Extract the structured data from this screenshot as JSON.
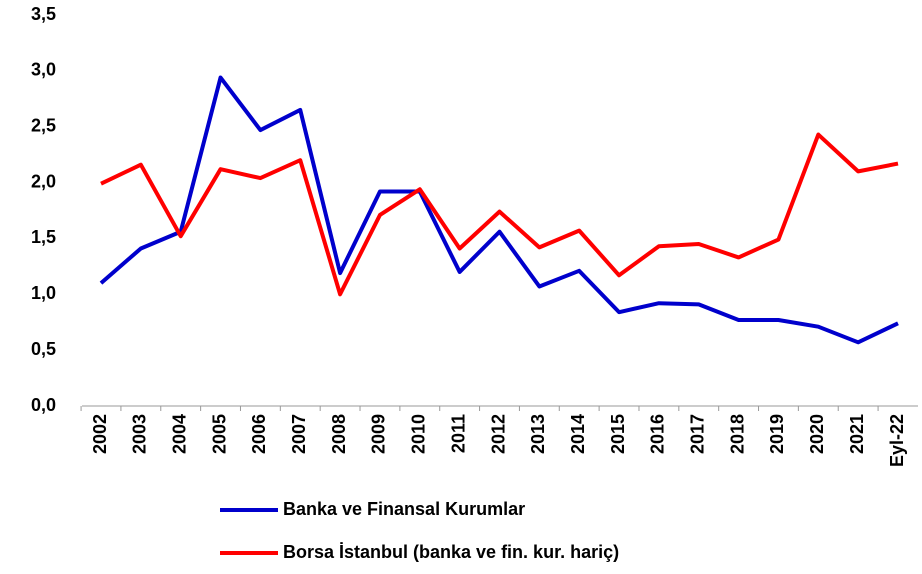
{
  "chart_data": {
    "type": "line",
    "categories": [
      "2002",
      "2003",
      "2004",
      "2005",
      "2006",
      "2007",
      "2008",
      "2009",
      "2010",
      "2011",
      "2012",
      "2013",
      "2014",
      "2015",
      "2016",
      "2017",
      "2018",
      "2019",
      "2020",
      "2021",
      "Eyl-22"
    ],
    "series": [
      {
        "name": "Banka ve Finansal Kurumlar",
        "color": "#0000cc",
        "values": [
          1.1,
          1.41,
          1.56,
          2.94,
          2.47,
          2.65,
          1.19,
          1.92,
          1.92,
          1.2,
          1.56,
          1.07,
          1.21,
          0.84,
          0.92,
          0.91,
          0.77,
          0.77,
          0.71,
          0.57,
          0.74
        ]
      },
      {
        "name": "Borsa İstanbul (banka ve fin. kur. hariç)",
        "color": "#ff0000",
        "values": [
          1.99,
          2.16,
          1.52,
          2.12,
          2.04,
          2.2,
          1.0,
          1.71,
          1.94,
          1.41,
          1.74,
          1.42,
          1.57,
          1.17,
          1.43,
          1.45,
          1.33,
          1.49,
          2.43,
          2.1,
          2.17
        ]
      }
    ],
    "ylim": [
      0,
      3.5
    ],
    "yticks": [
      {
        "value": 0,
        "label": "0,0"
      },
      {
        "value": 0.5,
        "label": "0,5"
      },
      {
        "value": 1,
        "label": "1,0"
      },
      {
        "value": 1.5,
        "label": "1,5"
      },
      {
        "value": 2,
        "label": "2,0"
      },
      {
        "value": 2.5,
        "label": "2,5"
      },
      {
        "value": 3,
        "label": "3,0"
      },
      {
        "value": 3.5,
        "label": "3,5"
      }
    ],
    "grid": false
  }
}
